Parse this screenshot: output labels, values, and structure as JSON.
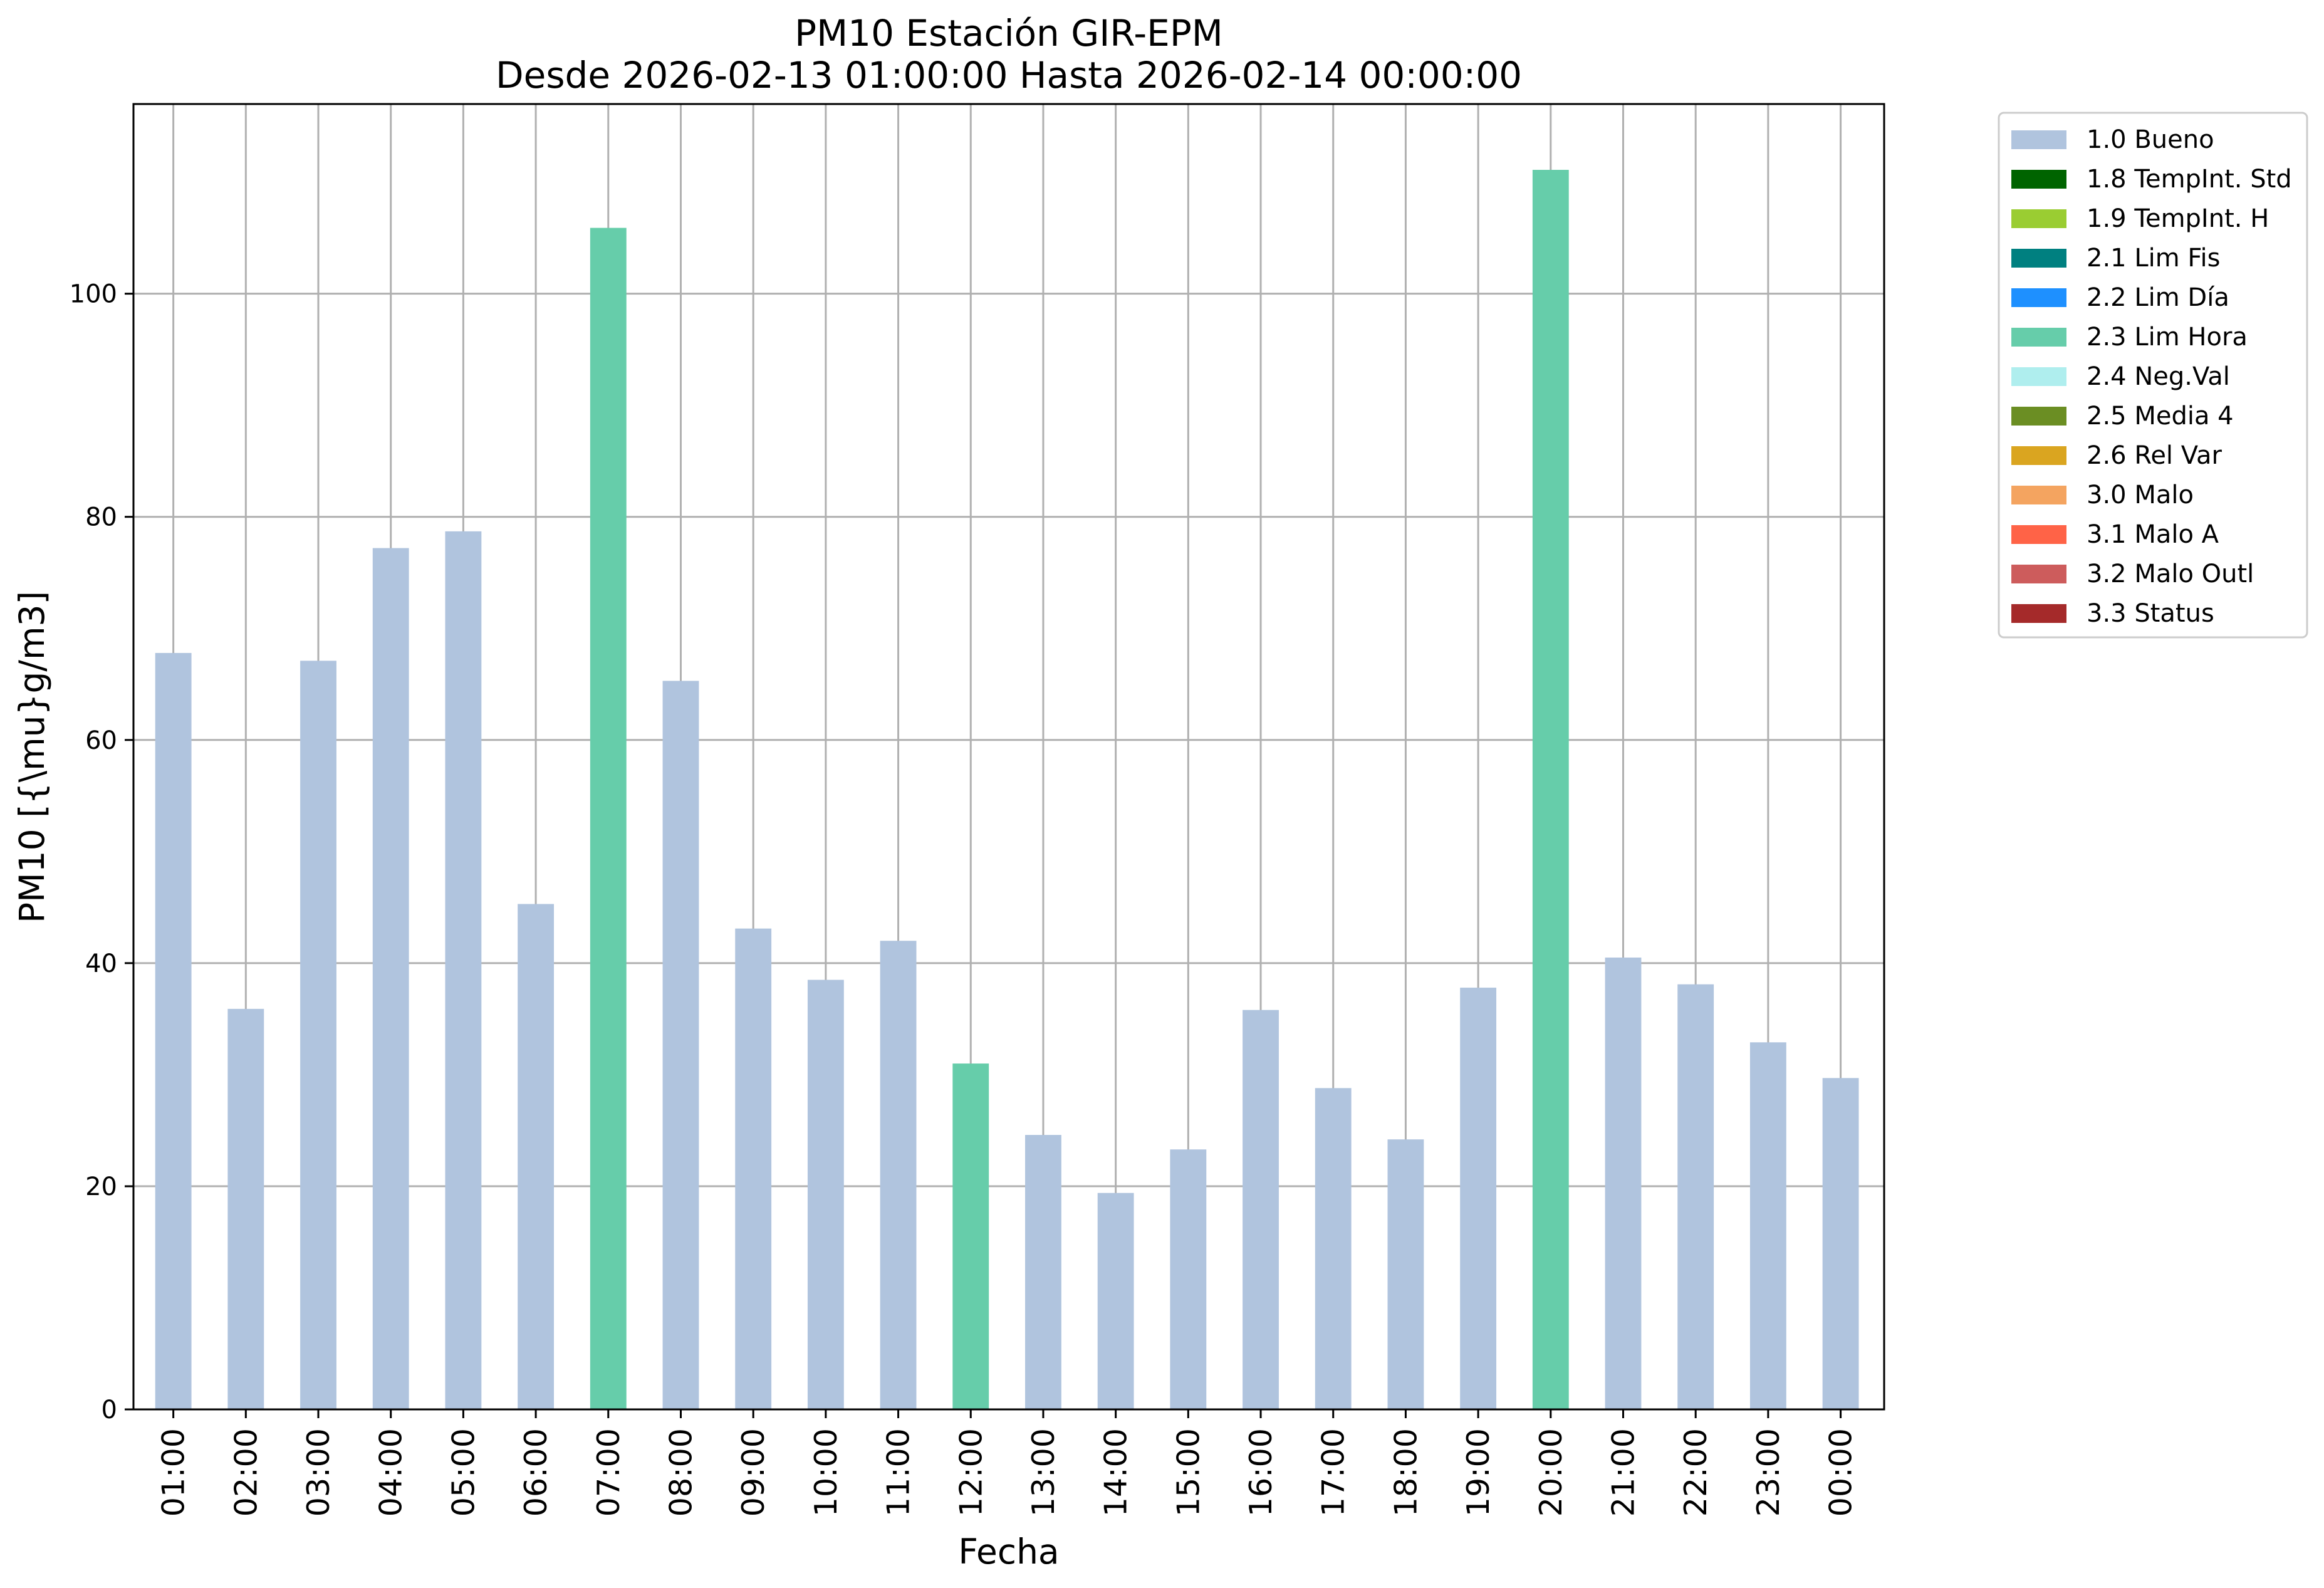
{
  "chart_data": {
    "type": "bar",
    "title_line1": "PM10 Estación GIR-EPM",
    "title_line2": "Desde 2026-02-13 01:00:00 Hasta 2026-02-14 00:00:00",
    "xlabel": "Fecha",
    "ylabel": "PM10 [{\\mu}g/m3]",
    "ylim": [
      0,
      117
    ],
    "yticks": [
      0,
      20,
      40,
      60,
      80,
      100
    ],
    "grid": true,
    "legend_placement": "outside-top-right",
    "categories": [
      "01:00",
      "02:00",
      "03:00",
      "04:00",
      "05:00",
      "06:00",
      "07:00",
      "08:00",
      "09:00",
      "10:00",
      "11:00",
      "12:00",
      "13:00",
      "14:00",
      "15:00",
      "16:00",
      "17:00",
      "18:00",
      "19:00",
      "20:00",
      "21:00",
      "22:00",
      "23:00",
      "00:00"
    ],
    "values": [
      67.8,
      35.9,
      67.1,
      77.2,
      78.7,
      45.3,
      105.9,
      65.3,
      43.1,
      38.5,
      42.0,
      31.0,
      24.6,
      19.4,
      23.3,
      35.8,
      28.8,
      24.2,
      37.8,
      111.1,
      40.5,
      38.1,
      32.9,
      29.7
    ],
    "flags": [
      "1.0 Bueno",
      "1.0 Bueno",
      "1.0 Bueno",
      "1.0 Bueno",
      "1.0 Bueno",
      "1.0 Bueno",
      "2.3 Lim Hora",
      "1.0 Bueno",
      "1.0 Bueno",
      "1.0 Bueno",
      "1.0 Bueno",
      "2.3 Lim Hora",
      "1.0 Bueno",
      "1.0 Bueno",
      "1.0 Bueno",
      "1.0 Bueno",
      "1.0 Bueno",
      "1.0 Bueno",
      "1.0 Bueno",
      "2.3 Lim Hora",
      "1.0 Bueno",
      "1.0 Bueno",
      "1.0 Bueno",
      "1.0 Bueno"
    ],
    "legend": [
      {
        "label": "1.0 Bueno",
        "color": "#b0c4de"
      },
      {
        "label": "1.8 TempInt. Std",
        "color": "#006400"
      },
      {
        "label": "1.9 TempInt. H",
        "color": "#9acd32"
      },
      {
        "label": "2.1 Lim Fis",
        "color": "#008080"
      },
      {
        "label": "2.2 Lim Día",
        "color": "#1e90ff"
      },
      {
        "label": "2.3 Lim Hora",
        "color": "#66cdaa"
      },
      {
        "label": "2.4 Neg.Val",
        "color": "#afeeee"
      },
      {
        "label": "2.5 Media 4",
        "color": "#6b8e23"
      },
      {
        "label": "2.6 Rel Var",
        "color": "#daa520"
      },
      {
        "label": "3.0 Malo",
        "color": "#f4a460"
      },
      {
        "label": "3.1 Malo A",
        "color": "#ff6347"
      },
      {
        "label": "3.2 Malo Outl",
        "color": "#cd5c5c"
      },
      {
        "label": "3.3 Status",
        "color": "#a52a2a"
      }
    ]
  }
}
